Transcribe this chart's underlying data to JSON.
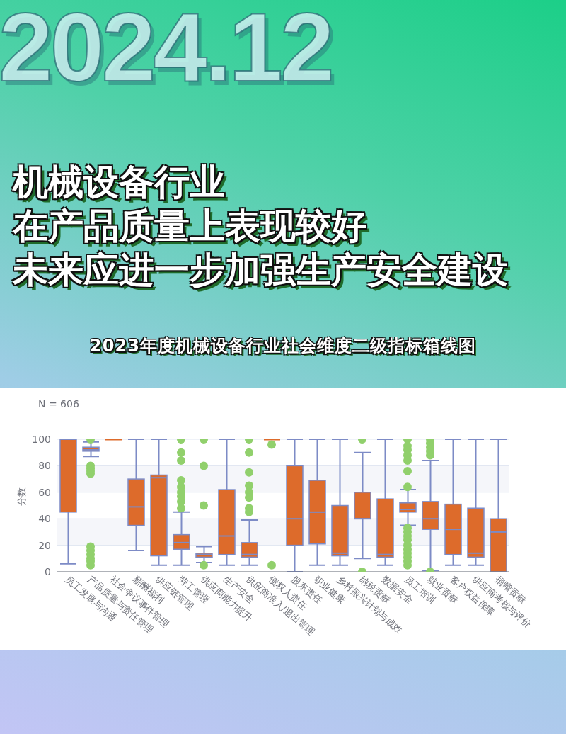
{
  "chart_data": {
    "type": "box",
    "title": "机械设备行业在产品质量上表现较好未来应进一步加强生产安全建设",
    "subtitle": "2023年度机械设备行业社会维度二级指标箱线图",
    "ylabel": "分数",
    "annotations": [
      "2024.12",
      "N = 606"
    ],
    "categories": [
      "员工发展与沟通",
      "产品质量与责任管理",
      "社会争议事件管理",
      "薪酬福利",
      "供应链管理",
      "劳工管理",
      "供应商能力提升",
      "生产安全",
      "供应商准入/退出管理",
      "债权人责任",
      "股东责任",
      "职业健康",
      "乡村振兴计划与成效",
      "纳税贡献",
      "数据安全",
      "员工培训",
      "就业贡献",
      "客户权益保障",
      "供应商考核与评价",
      "捐赠贡献"
    ],
    "series": [
      {
        "color": "#dd6b2b",
        "boxes": [
          {
            "low": 6,
            "q1": 45,
            "median": 100,
            "q3": 100,
            "high": 100
          },
          {
            "low": 87,
            "q1": 91,
            "median": 92,
            "q3": 94,
            "high": 98,
            "outliers": [
              100,
              80,
              78,
              76,
              74,
              19,
              16,
              13,
              10,
              8,
              5
            ]
          },
          {
            "low": 100,
            "q1": 100,
            "median": 100,
            "q3": 100,
            "high": 100
          },
          {
            "low": 16,
            "q1": 35,
            "median": 49,
            "q3": 70,
            "high": 100
          },
          {
            "low": 5,
            "q1": 12,
            "median": 71,
            "q3": 73,
            "high": 100
          },
          {
            "low": 5,
            "q1": 17,
            "median": 22,
            "q3": 28,
            "high": 45,
            "outliers": [
              100,
              90,
              84,
              69,
              64,
              60,
              57,
              53,
              48
            ]
          },
          {
            "low": 7,
            "q1": 11,
            "median": 13,
            "q3": 14,
            "high": 19,
            "outliers": [
              100,
              80,
              50,
              5
            ]
          },
          {
            "low": 5,
            "q1": 13,
            "median": 27,
            "q3": 62,
            "high": 100
          },
          {
            "low": 5,
            "q1": 11,
            "median": 13,
            "q3": 22,
            "high": 39,
            "outliers": [
              100,
              90,
              75,
              65,
              60,
              56,
              48,
              45
            ]
          },
          {
            "low": 100,
            "q1": 100,
            "median": 100,
            "q3": 100,
            "high": 100,
            "outliers": [
              96,
              5
            ]
          },
          {
            "low": 0,
            "q1": 20,
            "median": 40,
            "q3": 80,
            "high": 100
          },
          {
            "low": 5,
            "q1": 21,
            "median": 45,
            "q3": 69,
            "high": 100
          },
          {
            "low": 5,
            "q1": 12,
            "median": 14,
            "q3": 50,
            "high": 100
          },
          {
            "low": 10,
            "q1": 40,
            "median": 40,
            "q3": 60,
            "high": 90,
            "outliers": [
              100,
              0
            ]
          },
          {
            "low": 5,
            "q1": 11,
            "median": 13,
            "q3": 55,
            "high": 100
          },
          {
            "low": 35,
            "q1": 45,
            "median": 47,
            "q3": 52,
            "high": 62,
            "outliers": [
              100,
              95,
              92,
              88,
              84,
              76,
              64,
              33,
              30,
              27,
              24,
              20,
              17,
              14,
              11,
              8,
              5
            ]
          },
          {
            "low": 1,
            "q1": 32,
            "median": 40,
            "q3": 53,
            "high": 84,
            "outliers": [
              100,
              97,
              94,
              91,
              88,
              0
            ]
          },
          {
            "low": 5,
            "q1": 13,
            "median": 32,
            "q3": 51,
            "high": 100
          },
          {
            "low": 5,
            "q1": 11,
            "median": 14,
            "q3": 48,
            "high": 100
          },
          {
            "low": 0,
            "q1": 0,
            "median": 30,
            "q3": 40,
            "high": 100
          }
        ]
      }
    ],
    "ylim": [
      0,
      100
    ],
    "yticks": [
      0,
      20,
      40,
      60,
      80,
      100
    ],
    "grid": "y"
  }
}
